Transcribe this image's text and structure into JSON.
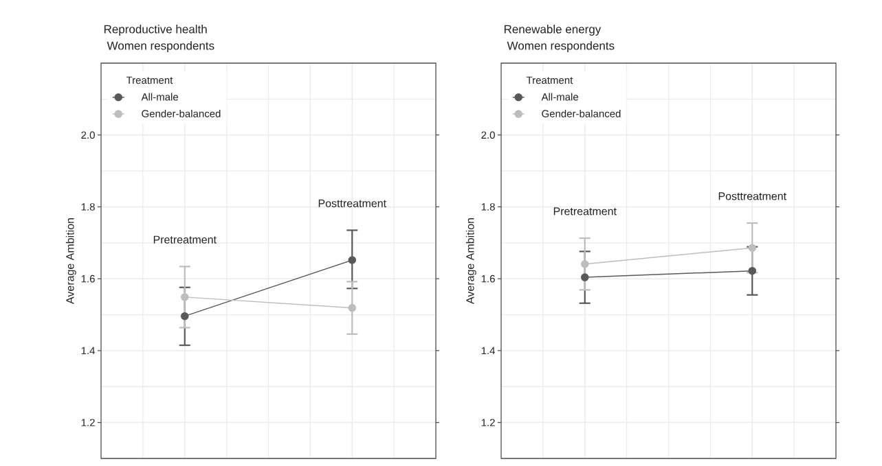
{
  "chart_data": [
    {
      "type": "line",
      "title": "Reproductive health",
      "subtitle": "Women respondents",
      "ylabel": "Average Ambition",
      "legend_title": "Treatment",
      "categories": [
        null,
        null
      ],
      "ylim": [
        1.1,
        2.2
      ],
      "yticks": [
        {
          "value": 1.2,
          "label": "1.2"
        },
        {
          "value": 1.4,
          "label": "1.4"
        },
        {
          "value": 1.6,
          "label": "1.6"
        },
        {
          "value": 1.8,
          "label": "1.8"
        },
        {
          "value": 2.0,
          "label": "2.0"
        }
      ],
      "grid": true,
      "legend": "top left",
      "marker": "circle",
      "tick_labels": "y",
      "annotations": [
        "Pretreatment",
        "Posttreatment"
      ],
      "series": [
        {
          "name": "All-male",
          "color": "#595959",
          "values": [
            1.496,
            1.652
          ],
          "errors": [
            [
              1.415,
              1.576
            ],
            [
              1.573,
              1.735
            ]
          ]
        },
        {
          "name": "Gender-balanced",
          "color": "#bdbdbd",
          "values": [
            1.549,
            1.519
          ],
          "errors": [
            [
              1.464,
              1.634
            ],
            [
              1.446,
              1.592
            ]
          ]
        }
      ]
    },
    {
      "type": "line",
      "title": "Renewable energy",
      "subtitle": "Women respondents",
      "ylabel": "Average Ambition",
      "legend_title": "Treatment",
      "categories": [
        null,
        null
      ],
      "ylim": [
        1.1,
        2.2
      ],
      "yticks": [
        {
          "value": 1.2,
          "label": "1.2"
        },
        {
          "value": 1.4,
          "label": "1.4"
        },
        {
          "value": 1.6,
          "label": "1.6"
        },
        {
          "value": 1.8,
          "label": "1.8"
        },
        {
          "value": 2.0,
          "label": "2.0"
        }
      ],
      "grid": true,
      "legend": "top left",
      "marker": "circle",
      "tick_labels": "y",
      "annotations": [
        "Pretreatment",
        "Posttreatment"
      ],
      "series": [
        {
          "name": "All-male",
          "color": "#595959",
          "values": [
            1.604,
            1.622
          ],
          "errors": [
            [
              1.532,
              1.676
            ],
            [
              1.555,
              1.689
            ]
          ]
        },
        {
          "name": "Gender-balanced",
          "color": "#bdbdbd",
          "values": [
            1.641,
            1.686
          ],
          "errors": [
            [
              1.569,
              1.713
            ],
            [
              1.617,
              1.755
            ]
          ]
        }
      ]
    }
  ]
}
